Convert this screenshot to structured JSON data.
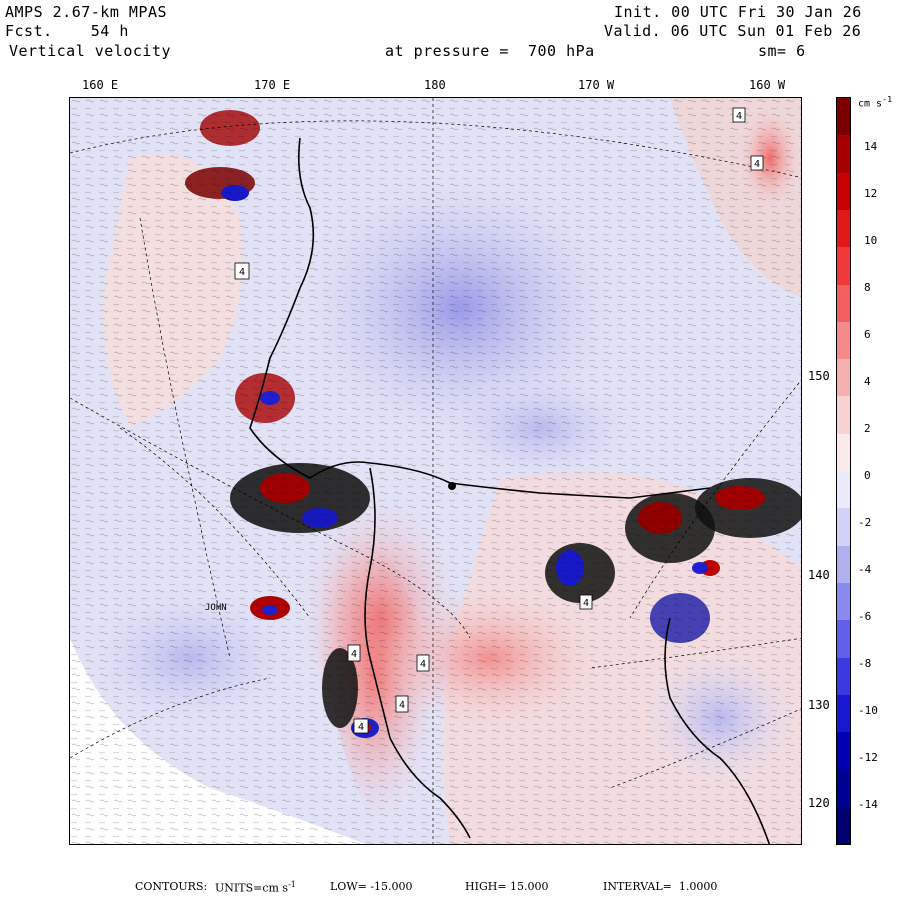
{
  "header": {
    "model": "AMPS 2.67-km MPAS",
    "fcst": "Fcst.    54 h",
    "field": "Vertical velocity",
    "init": "Init. 00 UTC Fri 30 Jan 26",
    "valid": "Valid. 06 UTC Sun 01 Feb 26",
    "level": "at pressure =  700 hPa",
    "smooth": "sm= 6"
  },
  "longitude_labels": [
    "160 E",
    "170 E",
    "180",
    "170 W",
    "160 W"
  ],
  "latitude_labels": [
    "150 W",
    "140 W",
    "130 W",
    "120 W"
  ],
  "place_label": "JOHN",
  "contour_labels": [
    "4",
    "4",
    "4",
    "4",
    "4",
    "4",
    "4",
    "4"
  ],
  "colorbar": {
    "unit": "cm s",
    "unit_superscript": "-1",
    "ticks": [
      "14",
      "12",
      "10",
      "8",
      "6",
      "4",
      "2",
      "0",
      "-2",
      "-4",
      "-6",
      "-8",
      "-10",
      "-12",
      "-14"
    ],
    "colors": [
      "#7a0000",
      "#a50000",
      "#c80000",
      "#e01818",
      "#f03a3a",
      "#f26060",
      "#f48a8a",
      "#f6b0b0",
      "#f8d2d2",
      "#faeaea",
      "#eaeafa",
      "#d2d2f6",
      "#b0b0f0",
      "#8a8aec",
      "#6060e8",
      "#3a3ae0",
      "#1818d0",
      "#0000b0",
      "#000090",
      "#000070"
    ]
  },
  "footer": {
    "contours_label": "CONTOURS:",
    "units_label": "UNITS=cm s",
    "units_superscript": "-1",
    "low": "LOW= -15.000",
    "high": "HIGH= 15.000",
    "interval": "INTERVAL=  1.0000"
  }
}
